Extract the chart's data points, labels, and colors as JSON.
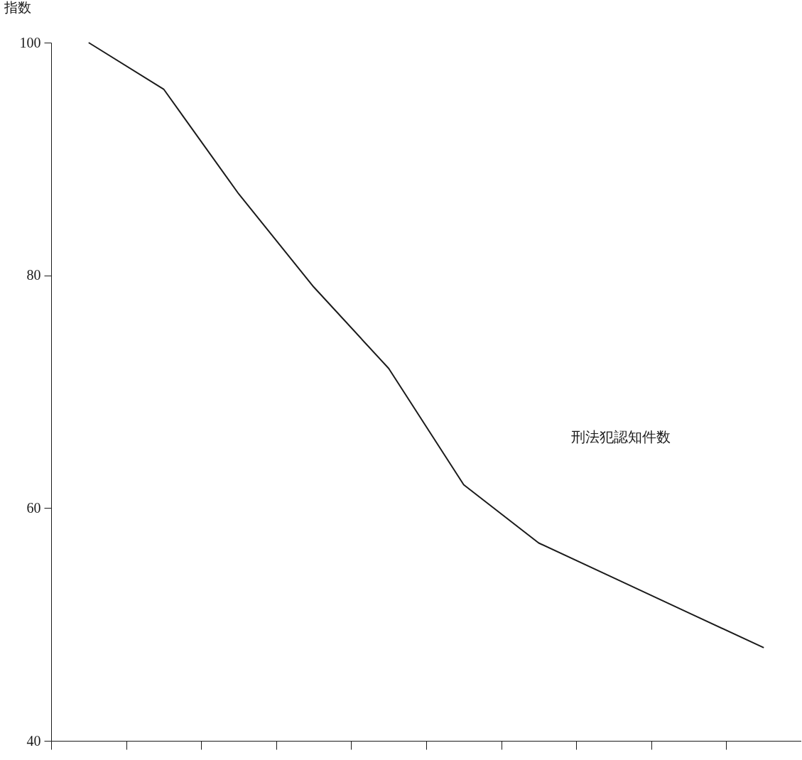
{
  "chart_data": {
    "type": "line",
    "ylabel": "指数",
    "categories": [
      null,
      null,
      null,
      null,
      null,
      null,
      null,
      null,
      null,
      null
    ],
    "series": [
      {
        "name": "刑法犯認知件数",
        "color": "#1a1a1a",
        "values": [
          100,
          96,
          87,
          79,
          72,
          62,
          57,
          54,
          51,
          48
        ]
      }
    ],
    "ylim": [
      40,
      100
    ],
    "yticks": [
      40,
      60,
      80,
      100
    ],
    "tick_labels": "y",
    "grid": false
  }
}
